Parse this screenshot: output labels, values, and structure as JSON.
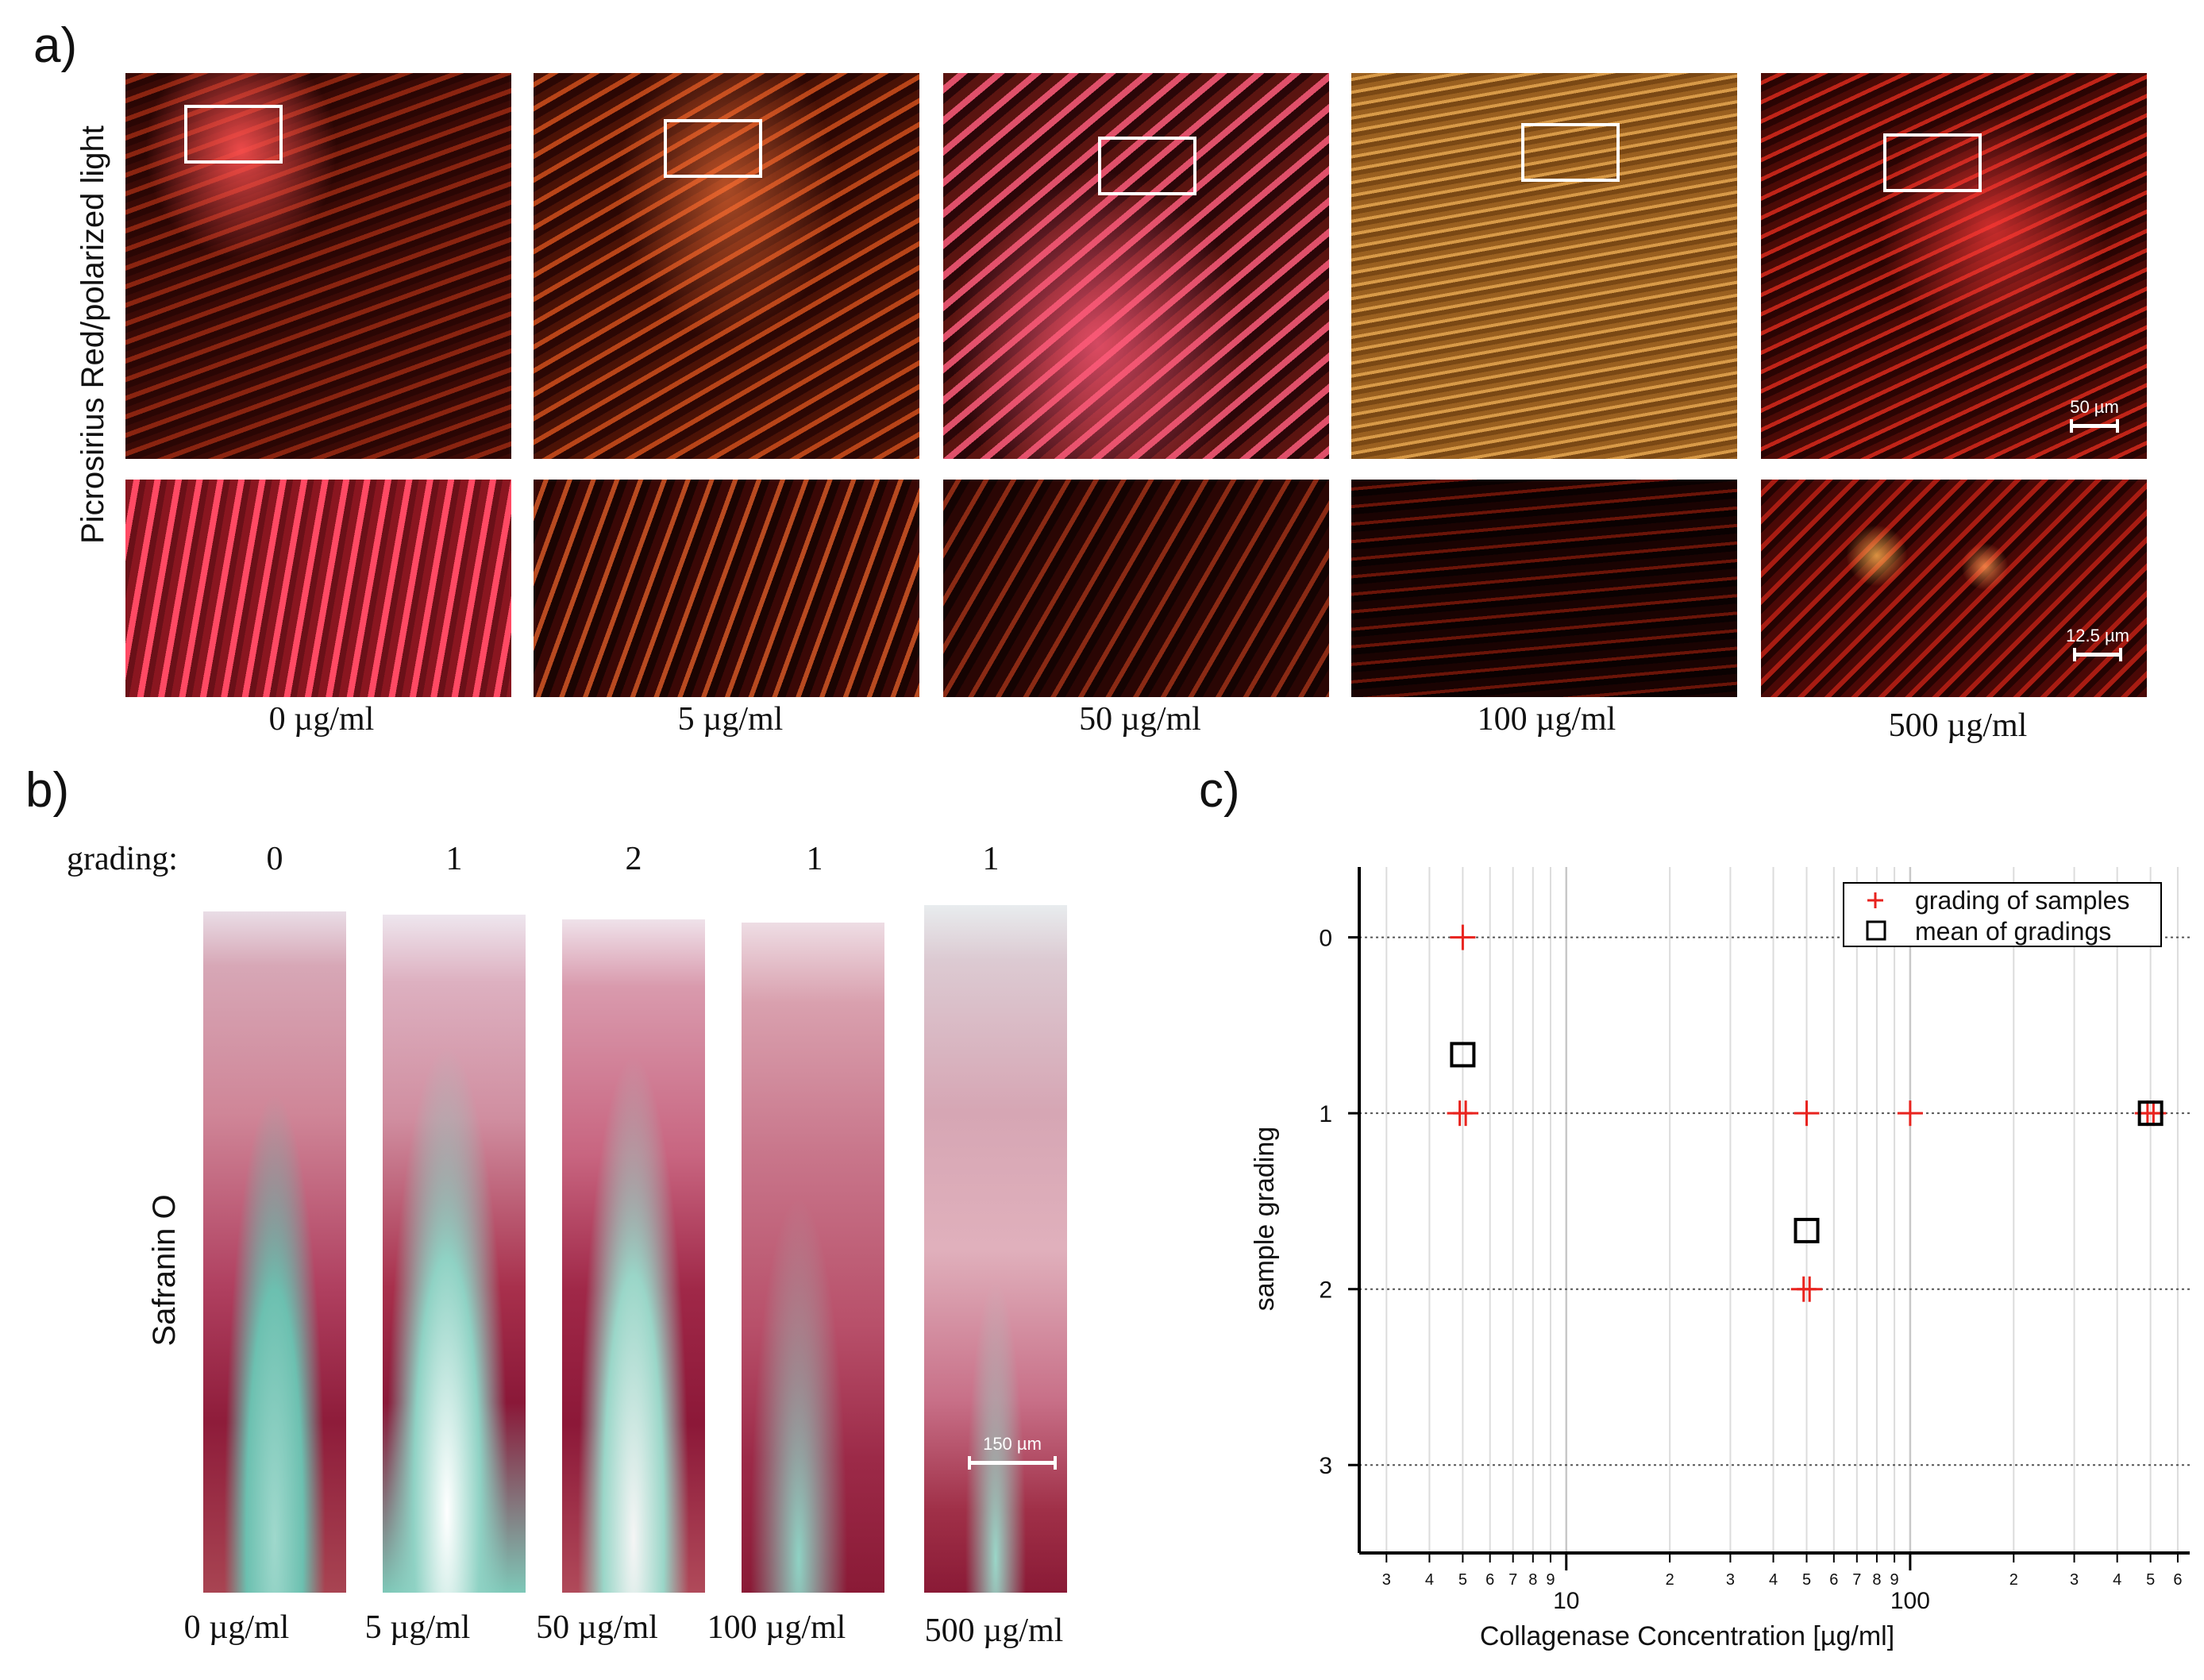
{
  "panel_a": {
    "label": "a)",
    "ylabel": "Picrosirius Red/polarized light",
    "scale_top": "50 µm",
    "scale_bottom": "12.5 µm",
    "concentrations": [
      "0 µg/ml",
      "5 µg/ml",
      "50 µg/ml",
      "100 µg/ml",
      "500 µg/ml"
    ]
  },
  "panel_b": {
    "label": "b)",
    "grading_label": "grading:",
    "grades": [
      "0",
      "1",
      "2",
      "1",
      "1"
    ],
    "ylabel": "Safranin O",
    "scale": "150 µm",
    "concentrations": [
      "0 µg/ml",
      "5 µg/ml",
      "50 µg/ml",
      "100 µg/ml",
      "500 µg/ml"
    ]
  },
  "panel_c": {
    "label": "c)"
  },
  "chart_data": {
    "type": "scatter",
    "xlabel": "Collagenase Concentration [µg/ml]",
    "ylabel": "sample grading",
    "xscale": "log",
    "xlim": [
      2.5,
      650
    ],
    "ylim": [
      3.5,
      -0.4
    ],
    "y_inverted": true,
    "y_ticks": [
      0,
      1,
      2,
      3
    ],
    "x_major_ticks": [
      10,
      100
    ],
    "x_minor_tick_labels": [
      "3",
      "4",
      "5",
      "6",
      "7",
      "8",
      "9",
      "2",
      "3",
      "4",
      "5",
      "6",
      "7",
      "8",
      "9",
      "2",
      "3",
      "4",
      "5",
      "6"
    ],
    "grid": true,
    "legend_position": "top-right",
    "series": [
      {
        "name": "grading of samples",
        "marker": "plus",
        "color": "#e8231e",
        "points": [
          [
            5,
            0
          ],
          [
            4.9,
            1
          ],
          [
            5.1,
            1
          ],
          [
            50,
            1
          ],
          [
            100,
            1
          ],
          [
            49,
            2
          ],
          [
            51,
            2
          ],
          [
            490,
            1
          ],
          [
            510,
            1
          ]
        ]
      },
      {
        "name": "mean of gradings",
        "marker": "square",
        "color": "#000000",
        "points": [
          [
            5,
            0.667
          ],
          [
            50,
            1.667
          ],
          [
            500,
            1
          ]
        ]
      }
    ]
  }
}
